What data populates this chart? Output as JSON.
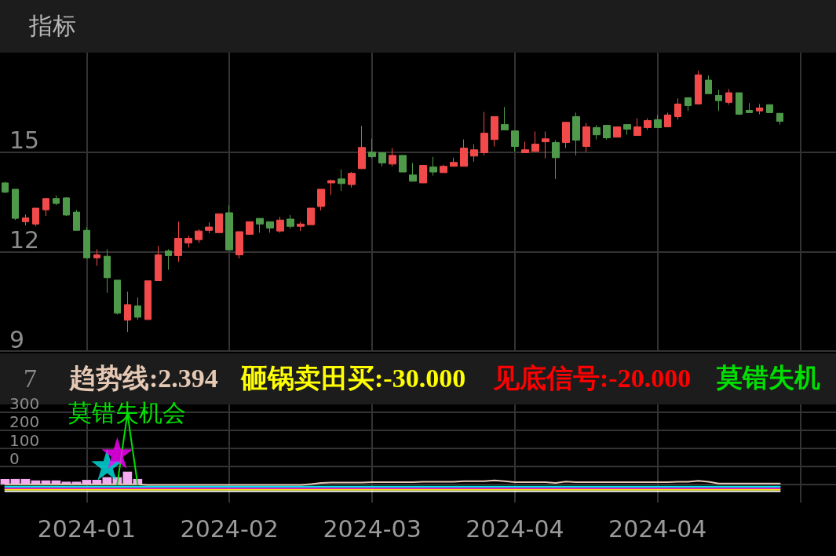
{
  "chart_data": [
    {
      "type": "candlestick",
      "title": "指标",
      "tick_labels": "y",
      "grid": true,
      "ylim": [
        9,
        18
      ],
      "yticks": [
        9,
        12,
        15
      ],
      "categories": [
        null,
        null,
        null,
        null,
        null,
        null,
        null,
        null,
        "2024-01",
        null,
        null,
        null,
        null,
        null,
        null,
        null,
        null,
        null,
        null,
        null,
        null,
        null,
        "2024-02",
        null,
        null,
        null,
        null,
        null,
        null,
        null,
        null,
        null,
        null,
        null,
        null,
        null,
        "2024-03",
        null,
        null,
        null,
        null,
        null,
        null,
        null,
        null,
        null,
        null,
        null,
        null,
        null,
        "2024-04",
        null,
        null,
        null,
        null,
        null,
        null,
        null,
        null,
        null,
        null,
        null,
        null,
        null,
        "2024-04",
        null,
        null,
        null,
        null,
        null,
        null,
        null,
        null,
        null,
        null,
        null,
        null,
        null,
        null,
        null,
        null,
        null
      ],
      "ohlc": [
        [
          14.07,
          14.1,
          13.76,
          13.79
        ],
        [
          13.88,
          13.88,
          12.95,
          13.0
        ],
        [
          12.9,
          13.12,
          12.79,
          13.02
        ],
        [
          12.83,
          13.31,
          12.76,
          13.31
        ],
        [
          13.26,
          13.62,
          13.07,
          13.6
        ],
        [
          13.6,
          13.69,
          13.4,
          13.45
        ],
        [
          13.62,
          13.64,
          13.07,
          13.1
        ],
        [
          13.19,
          13.26,
          12.64,
          12.64
        ],
        [
          12.64,
          12.74,
          11.79,
          11.81
        ],
        [
          11.81,
          12.07,
          11.57,
          11.9
        ],
        [
          11.86,
          12.07,
          10.76,
          11.21
        ],
        [
          11.14,
          11.14,
          10.1,
          10.14
        ],
        [
          9.93,
          10.79,
          9.57,
          10.4
        ],
        [
          10.36,
          10.62,
          9.95,
          10.02
        ],
        [
          9.95,
          11.12,
          9.95,
          11.12
        ],
        [
          11.12,
          12.17,
          11.12,
          11.9
        ],
        [
          12.02,
          12.07,
          11.45,
          11.88
        ],
        [
          11.88,
          12.9,
          11.69,
          12.4
        ],
        [
          12.26,
          12.48,
          12.12,
          12.4
        ],
        [
          12.36,
          12.67,
          12.26,
          12.62
        ],
        [
          12.64,
          12.88,
          12.55,
          12.74
        ],
        [
          12.57,
          13.14,
          12.57,
          13.14
        ],
        [
          13.17,
          13.4,
          12.05,
          12.05
        ],
        [
          11.9,
          12.6,
          11.79,
          12.6
        ],
        [
          12.52,
          12.9,
          12.52,
          12.9
        ],
        [
          13.0,
          13.0,
          12.57,
          12.83
        ],
        [
          12.9,
          12.9,
          12.57,
          12.71
        ],
        [
          12.62,
          13.05,
          12.57,
          12.95
        ],
        [
          12.98,
          13.1,
          12.69,
          12.76
        ],
        [
          12.76,
          12.9,
          12.62,
          12.83
        ],
        [
          12.81,
          13.31,
          12.81,
          13.31
        ],
        [
          13.36,
          13.88,
          13.24,
          13.88
        ],
        [
          14.07,
          14.17,
          13.71,
          14.14
        ],
        [
          14.19,
          14.48,
          13.83,
          14.05
        ],
        [
          14.02,
          14.4,
          13.93,
          14.36
        ],
        [
          14.5,
          15.79,
          14.5,
          15.14
        ],
        [
          15.0,
          15.4,
          14.81,
          14.86
        ],
        [
          14.98,
          14.98,
          14.57,
          14.67
        ],
        [
          14.64,
          15.12,
          14.57,
          14.9
        ],
        [
          14.9,
          14.9,
          14.4,
          14.4
        ],
        [
          14.31,
          14.67,
          14.12,
          14.12
        ],
        [
          14.07,
          14.6,
          14.07,
          14.6
        ],
        [
          14.55,
          14.86,
          14.29,
          14.4
        ],
        [
          14.38,
          14.62,
          14.38,
          14.57
        ],
        [
          14.57,
          14.83,
          14.57,
          14.69
        ],
        [
          14.57,
          15.38,
          14.57,
          15.12
        ],
        [
          14.88,
          15.24,
          14.71,
          15.07
        ],
        [
          14.98,
          16.21,
          14.9,
          15.57
        ],
        [
          15.38,
          16.07,
          15.17,
          16.07
        ],
        [
          15.83,
          16.36,
          15.67,
          15.67
        ],
        [
          15.64,
          15.64,
          15.02,
          15.17
        ],
        [
          14.98,
          15.31,
          14.98,
          15.07
        ],
        [
          15.02,
          15.62,
          15.02,
          15.24
        ],
        [
          15.31,
          15.62,
          14.81,
          15.4
        ],
        [
          15.29,
          15.36,
          14.19,
          14.83
        ],
        [
          15.29,
          15.9,
          15.12,
          15.9
        ],
        [
          16.07,
          16.19,
          14.9,
          15.36
        ],
        [
          15.17,
          15.88,
          15.0,
          15.76
        ],
        [
          15.74,
          15.81,
          15.38,
          15.52
        ],
        [
          15.81,
          15.81,
          15.38,
          15.43
        ],
        [
          15.45,
          15.76,
          15.45,
          15.76
        ],
        [
          15.83,
          15.83,
          15.52,
          15.69
        ],
        [
          15.5,
          16.02,
          15.5,
          15.76
        ],
        [
          15.74,
          16.02,
          15.67,
          15.95
        ],
        [
          15.98,
          16.12,
          15.74,
          15.74
        ],
        [
          15.76,
          16.19,
          15.76,
          16.12
        ],
        [
          16.07,
          16.62,
          15.98,
          16.45
        ],
        [
          16.64,
          16.64,
          16.24,
          16.4
        ],
        [
          16.45,
          17.45,
          16.45,
          17.33
        ],
        [
          17.17,
          17.31,
          16.76,
          16.76
        ],
        [
          16.71,
          16.88,
          16.24,
          16.55
        ],
        [
          16.5,
          16.9,
          16.43,
          16.79
        ],
        [
          16.79,
          16.79,
          16.12,
          16.14
        ],
        [
          16.26,
          16.48,
          16.19,
          16.19
        ],
        [
          16.24,
          16.45,
          16.14,
          16.33
        ],
        [
          16.43,
          16.43,
          16.19,
          16.19
        ],
        [
          16.17,
          16.17,
          15.83,
          15.93
        ],
        null,
        null,
        null,
        null,
        null
      ],
      "colors": [
        "#4e9a4a",
        "#4e9a4a",
        "#f24a4a",
        "#f24a4a",
        "#f24a4a",
        "#4e9a4a",
        "#4e9a4a",
        "#4e9a4a",
        "#4e9a4a",
        "#f24a4a",
        "#4e9a4a",
        "#4e9a4a",
        "#f24a4a",
        "#4e9a4a",
        "#f24a4a",
        "#f24a4a",
        "#4e9a4a",
        "#f24a4a",
        "#f24a4a",
        "#f24a4a",
        "#f24a4a",
        "#f24a4a",
        "#4e9a4a",
        "#f24a4a",
        "#f24a4a",
        "#4e9a4a",
        "#4e9a4a",
        "#f24a4a",
        "#4e9a4a",
        "#f24a4a",
        "#f24a4a",
        "#f24a4a",
        "#f24a4a",
        "#4e9a4a",
        "#f24a4a",
        "#f24a4a",
        "#4e9a4a",
        "#4e9a4a",
        "#f24a4a",
        "#4e9a4a",
        "#4e9a4a",
        "#f24a4a",
        "#4e9a4a",
        "#f24a4a",
        "#f24a4a",
        "#f24a4a",
        "#f24a4a",
        "#f24a4a",
        "#f24a4a",
        "#4e9a4a",
        "#4e9a4a",
        "#f24a4a",
        "#f24a4a",
        "#f24a4a",
        "#4e9a4a",
        "#f24a4a",
        "#4e9a4a",
        "#f24a4a",
        "#4e9a4a",
        "#4e9a4a",
        "#f24a4a",
        "#4e9a4a",
        "#f24a4a",
        "#f24a4a",
        "#4e9a4a",
        "#f24a4a",
        "#f24a4a",
        "#4e9a4a",
        "#f24a4a",
        "#4e9a4a",
        "#4e9a4a",
        "#f24a4a",
        "#4e9a4a",
        "#4e9a4a",
        "#f24a4a",
        "#4e9a4a",
        "#4e9a4a",
        null,
        null,
        null,
        null,
        null
      ]
    },
    {
      "type": "line",
      "grid": true,
      "ylim": [
        -200,
        340
      ],
      "yticks": [
        {
          "value": -100,
          "label": null
        },
        0,
        100,
        200,
        300
      ],
      "annotations": [
        "7",
        "趋势线:2.394",
        "砸锅卖田买:-30.000",
        "见底信号:-20.000",
        "莫错失机"
      ],
      "categories": [
        null,
        null,
        null,
        null,
        null,
        null,
        null,
        null,
        "2024-01",
        null,
        null,
        null,
        null,
        null,
        null,
        null,
        null,
        null,
        null,
        null,
        null,
        null,
        "2024-02",
        null,
        null,
        null,
        null,
        null,
        null,
        null,
        null,
        null,
        null,
        null,
        null,
        null,
        "2024-03",
        null,
        null,
        null,
        null,
        null,
        null,
        null,
        null,
        null,
        null,
        null,
        null,
        null,
        "2024-04",
        null,
        null,
        null,
        null,
        null,
        null,
        null,
        null,
        null,
        null,
        null,
        null,
        null,
        "2024-04",
        null,
        null,
        null,
        null,
        null,
        null,
        null,
        null,
        null,
        null,
        null,
        null,
        null,
        null,
        null,
        null,
        null
      ],
      "series": [
        {
          "type": "bar",
          "color": "#f5aaf2",
          "base": [
            -100,
            -100,
            -100,
            -100,
            -100,
            -100,
            -100,
            -100,
            -100,
            -100,
            -100,
            -100,
            -100,
            -100,
            null,
            null,
            null,
            null,
            null,
            null,
            null,
            null,
            null,
            null,
            null,
            null,
            null,
            null,
            null,
            null,
            null,
            null,
            null,
            null,
            null,
            null,
            null,
            null,
            null,
            null,
            null,
            null,
            null,
            null,
            null,
            null,
            null,
            null,
            null,
            null,
            null,
            null,
            null,
            null,
            null,
            null,
            null,
            null,
            null,
            null,
            null,
            null,
            null,
            null,
            null,
            null,
            null,
            null,
            null,
            null,
            null,
            null,
            null,
            null,
            null,
            null,
            null,
            null,
            null,
            null,
            null,
            null
          ],
          "values": [
            30,
            30,
            30,
            22,
            22,
            22,
            15,
            15,
            25,
            25,
            40,
            40,
            70,
            30,
            null,
            null,
            null,
            null,
            null,
            null,
            null,
            null,
            null,
            null,
            null,
            null,
            null,
            null,
            null,
            null,
            null,
            null,
            null,
            null,
            null,
            null,
            null,
            null,
            null,
            null,
            null,
            null,
            null,
            null,
            null,
            null,
            null,
            null,
            null,
            null,
            null,
            null,
            null,
            null,
            null,
            null,
            null,
            null,
            null,
            null,
            null,
            null,
            null,
            null,
            null,
            null,
            null,
            null,
            null,
            null,
            null,
            null,
            null,
            null,
            null,
            null,
            null,
            null,
            null,
            null,
            null,
            null
          ]
        },
        {
          "type": "line",
          "color": "#ffffff",
          "values": [
            -137,
            -137,
            -137,
            -137,
            -137,
            -137,
            -137,
            -137,
            -137,
            -137,
            -137,
            -137,
            -137,
            -137,
            -137,
            -137,
            -137,
            -137,
            -137,
            -137,
            -137,
            -137,
            -137,
            -137,
            -137,
            -137,
            -137,
            -137,
            -137,
            -137,
            -137,
            -137,
            -137,
            -137,
            -137,
            -137,
            -137,
            -137,
            -137,
            -137,
            -137,
            -137,
            -137,
            -137,
            -137,
            -137,
            -137,
            -137,
            -137,
            -137,
            -137,
            -137,
            -137,
            -137,
            -137,
            -137,
            -137,
            -137,
            -137,
            -137,
            -137,
            -137,
            -137,
            -137,
            -137,
            -137,
            -137,
            -137,
            -137,
            -137,
            -137,
            -137,
            -137,
            -137,
            -137,
            -137,
            -137,
            null,
            null,
            null,
            null,
            null
          ]
        },
        {
          "type": "line",
          "color": "#ffff00",
          "values": [
            -129,
            -129,
            -129,
            -129,
            -129,
            -129,
            -129,
            -129,
            -129,
            -129,
            -129,
            -129,
            -129,
            -129,
            -129,
            -129,
            -129,
            -129,
            -129,
            -129,
            -129,
            -129,
            -129,
            -129,
            -129,
            -129,
            -129,
            -129,
            -129,
            -129,
            -129,
            -129,
            -129,
            -129,
            -129,
            -129,
            -129,
            -129,
            -129,
            -129,
            -129,
            -129,
            -129,
            -129,
            -129,
            -129,
            -129,
            -129,
            -129,
            -129,
            -129,
            -129,
            -129,
            -129,
            -129,
            -129,
            -129,
            -129,
            -129,
            -129,
            -129,
            -129,
            -129,
            -129,
            -129,
            -129,
            -129,
            -129,
            -129,
            -129,
            -129,
            -129,
            -129,
            -129,
            -129,
            -129,
            -129,
            null,
            null,
            null,
            null,
            null
          ]
        },
        {
          "type": "line",
          "color": "#ff00ff",
          "values": [
            -120,
            -120,
            -120,
            -120,
            -120,
            -120,
            -120,
            -120,
            -120,
            -120,
            -120,
            -120,
            -120,
            -120,
            -120,
            -120,
            -120,
            -120,
            -120,
            -120,
            -120,
            -120,
            -120,
            -120,
            -120,
            -120,
            -120,
            -120,
            -120,
            -120,
            -120,
            -120,
            -120,
            -120,
            -120,
            -120,
            -120,
            -120,
            -120,
            -120,
            -120,
            -120,
            -120,
            -120,
            -120,
            -120,
            -120,
            -120,
            -120,
            -120,
            -120,
            -120,
            -120,
            -120,
            -120,
            -120,
            -120,
            -120,
            -120,
            -120,
            -120,
            -120,
            -120,
            -120,
            -120,
            -120,
            -120,
            -120,
            -120,
            -120,
            -120,
            -120,
            -120,
            -120,
            -120,
            -120,
            -120,
            null,
            null,
            null,
            null,
            null
          ]
        },
        {
          "type": "line",
          "color": "#00e5e5",
          "values": [
            -112,
            -112,
            -112,
            -112,
            -112,
            -112,
            -112,
            -112,
            -112,
            -112,
            -112,
            -112,
            -112,
            -112,
            -112,
            -112,
            -112,
            -112,
            -112,
            -112,
            -112,
            -112,
            -112,
            -112,
            -112,
            -112,
            -112,
            -112,
            -112,
            -112,
            -112,
            -112,
            -112,
            -112,
            -112,
            -112,
            -112,
            -112,
            -112,
            -112,
            -112,
            -112,
            -112,
            -112,
            -112,
            -112,
            -112,
            -112,
            -112,
            -112,
            -112,
            -112,
            -112,
            -112,
            -112,
            -112,
            -112,
            -112,
            -112,
            -112,
            -112,
            -112,
            -112,
            -112,
            -112,
            -112,
            -112,
            -112,
            -112,
            -112,
            -112,
            -112,
            -112,
            -112,
            -112,
            -112,
            -112,
            null,
            null,
            null,
            null,
            null
          ]
        },
        {
          "type": "line",
          "color": "#e6c9b5",
          "values": [
            -100,
            -100,
            -100,
            -100,
            -100,
            -100,
            -100,
            -100,
            -100,
            -100,
            -100,
            -100,
            -100,
            -100,
            -103,
            -103,
            -103,
            -103,
            -103,
            -103,
            -103,
            -103,
            -103,
            -103,
            -103,
            -103,
            -103,
            -103,
            -103,
            -103,
            -98,
            -92,
            -90,
            -90,
            -90,
            -90,
            -88,
            -88,
            -88,
            -88,
            -88,
            -86,
            -86,
            -86,
            -86,
            -82,
            -82,
            -82,
            -78,
            -82,
            -88,
            -88,
            -88,
            -88,
            -92,
            -84,
            -88,
            -88,
            -88,
            -88,
            -88,
            -88,
            -88,
            -88,
            -88,
            -88,
            -86,
            -86,
            -80,
            -86,
            -95,
            -95,
            -95,
            -95,
            -95,
            -95,
            -95,
            null,
            null,
            null,
            null,
            null
          ]
        },
        {
          "type": "line",
          "name": "莫错失机会",
          "color": "#00e000",
          "values": [
            null,
            null,
            null,
            null,
            null,
            null,
            null,
            null,
            null,
            null,
            null,
            -100,
            290,
            -100,
            null,
            null,
            null,
            null,
            null,
            null,
            null,
            null,
            null,
            null,
            null,
            null,
            null,
            null,
            null,
            null,
            null,
            null,
            null,
            null,
            null,
            null,
            null,
            null,
            null,
            null,
            null,
            null,
            null,
            null,
            null,
            null,
            null,
            null,
            null,
            null,
            null,
            null,
            null,
            null,
            null,
            null,
            null,
            null,
            null,
            null,
            null,
            null,
            null,
            null,
            null,
            null,
            null,
            null,
            null,
            null,
            null,
            null,
            null,
            null,
            null,
            null,
            null,
            null,
            null,
            null,
            null,
            null
          ]
        },
        {
          "type": "scatter",
          "marker": "star",
          "color": "#00e5e5",
          "values": [
            null,
            null,
            null,
            null,
            null,
            null,
            null,
            null,
            null,
            null,
            8,
            null,
            null,
            null,
            null,
            null,
            null,
            null,
            null,
            null,
            null,
            null,
            null,
            null,
            null,
            null,
            null,
            null,
            null,
            null,
            null,
            null,
            null,
            null,
            null,
            null,
            null,
            null,
            null,
            null,
            null,
            null,
            null,
            null,
            null,
            null,
            null,
            null,
            null,
            null,
            null,
            null,
            null,
            null,
            null,
            null,
            null,
            null,
            null,
            null,
            null,
            null,
            null,
            null,
            null,
            null,
            null,
            null,
            null,
            null,
            null,
            null,
            null,
            null,
            null,
            null,
            null,
            null,
            null,
            null,
            null,
            null
          ]
        },
        {
          "type": "scatter",
          "marker": "star",
          "color": "#ff00ff",
          "values": [
            null,
            null,
            null,
            null,
            null,
            null,
            null,
            null,
            null,
            null,
            null,
            73,
            null,
            null,
            null,
            null,
            null,
            null,
            null,
            null,
            null,
            null,
            null,
            null,
            null,
            null,
            null,
            null,
            null,
            null,
            null,
            null,
            null,
            null,
            null,
            null,
            null,
            null,
            null,
            null,
            null,
            null,
            null,
            null,
            null,
            null,
            null,
            null,
            null,
            null,
            null,
            null,
            null,
            null,
            null,
            null,
            null,
            null,
            null,
            null,
            null,
            null,
            null,
            null,
            null,
            null,
            null,
            null,
            null,
            null,
            null,
            null,
            null,
            null,
            null,
            null,
            null,
            null,
            null,
            null,
            null,
            null
          ]
        }
      ]
    }
  ]
}
